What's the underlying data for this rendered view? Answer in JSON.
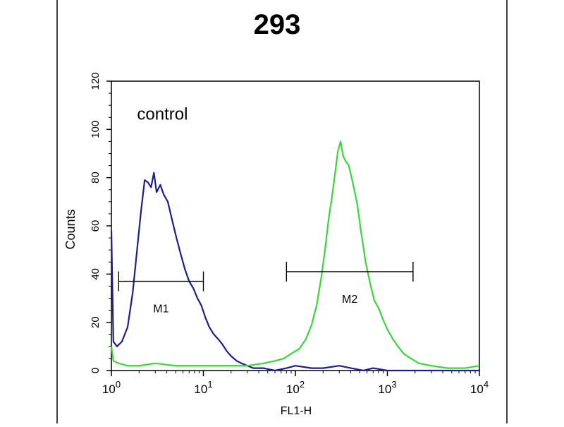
{
  "chart_data": {
    "type": "line",
    "title": "293",
    "xlabel": "FL1-H",
    "ylabel": "Counts",
    "x_scale": "log",
    "xlim": [
      1,
      10000
    ],
    "ylim": [
      0,
      120
    ],
    "y_ticks": [
      0,
      20,
      40,
      60,
      80,
      100,
      120
    ],
    "x_tick_labels": [
      {
        "value": 1,
        "base": "10",
        "exp": "0"
      },
      {
        "value": 10,
        "base": "10",
        "exp": "1"
      },
      {
        "value": 100,
        "base": "10",
        "exp": "2"
      },
      {
        "value": 1000,
        "base": "10",
        "exp": "3"
      },
      {
        "value": 10000,
        "base": "10",
        "exp": "4"
      }
    ],
    "annotations": [
      {
        "text": "control",
        "x": 1.9,
        "y": 104
      }
    ],
    "grid": false,
    "series": [
      {
        "color": "#1c1f8a",
        "x": [
          1,
          1.05,
          1.15,
          1.3,
          1.5,
          1.7,
          1.9,
          2.1,
          2.3,
          2.5,
          2.7,
          2.9,
          3.1,
          3.4,
          3.7,
          4.1,
          4.6,
          5.1,
          5.7,
          6.3,
          7,
          7.8,
          8.6,
          9.5,
          10.5,
          11.6,
          13,
          14.5,
          16,
          18,
          20,
          23,
          26,
          30,
          35,
          45,
          60,
          80,
          100,
          150,
          200,
          300,
          400,
          550,
          700,
          1000,
          2000,
          5000,
          10000
        ],
        "y": [
          58,
          12,
          10,
          12,
          18,
          32,
          50,
          66,
          79,
          78,
          76,
          82,
          74,
          77,
          73,
          70,
          62,
          55,
          48,
          42,
          37,
          34,
          30,
          27,
          22,
          18,
          15,
          13,
          11,
          8,
          6,
          4,
          3,
          2,
          1,
          1,
          0,
          1,
          2,
          1,
          1,
          2,
          1,
          0,
          1,
          0,
          0,
          0,
          0
        ]
      },
      {
        "color": "#3ad63a",
        "x": [
          1,
          1.05,
          1.2,
          1.5,
          2,
          3,
          5,
          8,
          12,
          20,
          30,
          45,
          60,
          75,
          90,
          110,
          130,
          150,
          170,
          190,
          210,
          230,
          250,
          270,
          290,
          310,
          330,
          350,
          380,
          420,
          470,
          520,
          580,
          650,
          720,
          800,
          900,
          1000,
          1150,
          1300,
          1500,
          1800,
          2200,
          3000,
          4500,
          7000,
          10000
        ],
        "y": [
          10,
          4,
          3,
          2,
          2,
          3,
          2,
          2,
          2,
          2,
          2,
          3,
          4,
          5,
          7,
          9,
          13,
          19,
          27,
          38,
          50,
          63,
          72,
          82,
          91,
          95,
          89,
          87,
          85,
          78,
          69,
          57,
          45,
          36,
          29,
          26,
          21,
          17,
          13,
          10,
          7,
          5,
          3,
          2,
          1,
          1,
          2
        ]
      }
    ],
    "markers": [
      {
        "label": "M1",
        "x_start": 1.2,
        "x_end": 10,
        "y": 37
      },
      {
        "label": "M2",
        "x_start": 80,
        "x_end": 1900,
        "y": 41
      }
    ]
  }
}
